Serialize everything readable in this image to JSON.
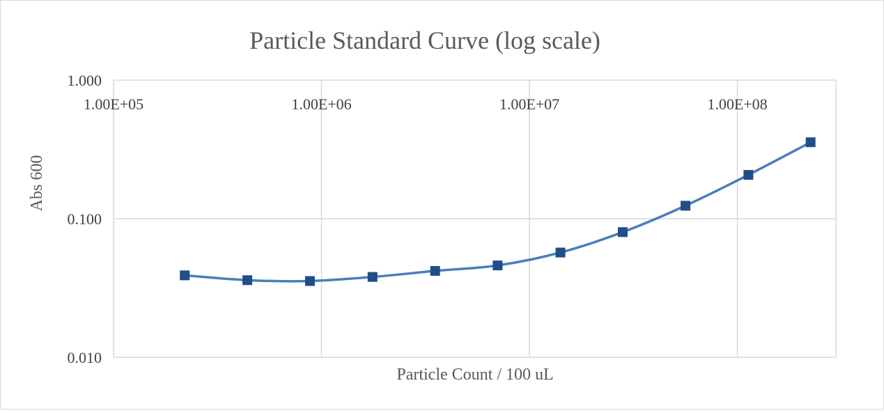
{
  "chart_data": {
    "type": "scatter",
    "title": "Particle Standard Curve (log scale)",
    "xlabel": "Particle Count / 100 uL",
    "ylabel": "Abs 600",
    "x_scale": "log",
    "y_scale": "log",
    "xlim": [
      100000,
      300000000
    ],
    "ylim": [
      0.01,
      1
    ],
    "x_ticks": [
      "1.00E+05",
      "1.00E+06",
      "1.00E+07",
      "1.00E+08"
    ],
    "x_tick_values": [
      100000,
      1000000,
      10000000,
      100000000
    ],
    "y_ticks": [
      "0.010",
      "0.100",
      "1.000"
    ],
    "y_tick_values": [
      0.01,
      0.1,
      1
    ],
    "grid": true,
    "legend": "none",
    "line_color": "#4a7ebb",
    "marker_color": "#1f4e89",
    "x": [
      220000,
      440000,
      880000,
      1760000,
      3520000,
      7030000,
      14100000,
      28100000,
      56300000,
      113000000,
      225000000
    ],
    "y": [
      0.039,
      0.036,
      0.0355,
      0.038,
      0.042,
      0.046,
      0.057,
      0.08,
      0.124,
      0.207,
      0.356
    ]
  }
}
